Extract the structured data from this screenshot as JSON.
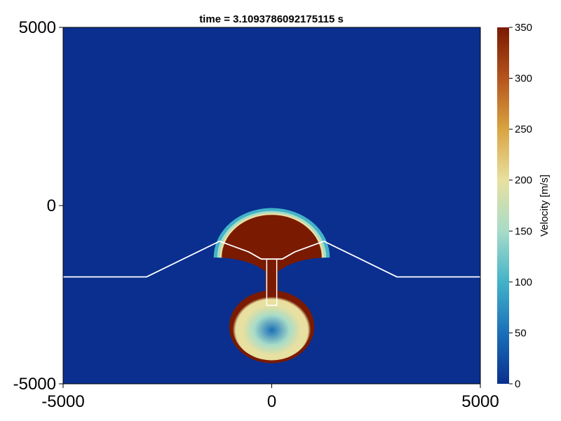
{
  "chart_data": {
    "type": "heatmap",
    "title": "time = 3.1093786092175115 s",
    "xlabel": "",
    "ylabel": "",
    "xlim": [
      -5000,
      5000
    ],
    "ylim": [
      -5000,
      5000
    ],
    "x_ticks": [
      "-5000",
      "0",
      "5000"
    ],
    "y_ticks": [
      "5000",
      "0",
      "-5000"
    ],
    "grid": false,
    "colorbar": {
      "label": "Velocity [m/s]",
      "range": [
        0,
        350
      ],
      "ticks": [
        "350",
        "300",
        "250",
        "200",
        "150",
        "100",
        "50",
        "0"
      ],
      "colormap": [
        "#0a2f8f",
        "#1a6fb8",
        "#43b3c8",
        "#a8dcc8",
        "#e8e0a0",
        "#d9a441",
        "#b5541c",
        "#7a1a00"
      ]
    },
    "background_value": 0,
    "field_features": [
      {
        "name": "upper plume cap",
        "shape": "half-disc",
        "center": [
          0,
          -800
        ],
        "radius": 1200,
        "velocity": 350
      },
      {
        "name": "conduit",
        "shape": "column",
        "x_range": [
          -150,
          150
        ],
        "y_range": [
          -2800,
          -1500
        ],
        "velocity": 350
      },
      {
        "name": "lower chamber",
        "shape": "disc",
        "center": [
          0,
          -3400
        ],
        "radius": 1000,
        "velocity_center": 60,
        "velocity_rim": 350
      }
    ],
    "topography_line": {
      "x": [
        -5000,
        -3000,
        -1250,
        -550,
        -250,
        250,
        550,
        1250,
        3000,
        5000
      ],
      "y": [
        -2000,
        -2000,
        -1000,
        -1300,
        -1500,
        -1500,
        -1300,
        -1000,
        -2000,
        -2000
      ]
    },
    "conduit_outline": {
      "x": [
        -120,
        -120,
        120,
        120
      ],
      "y": [
        -1500,
        -2800,
        -2800,
        -1500
      ]
    }
  }
}
